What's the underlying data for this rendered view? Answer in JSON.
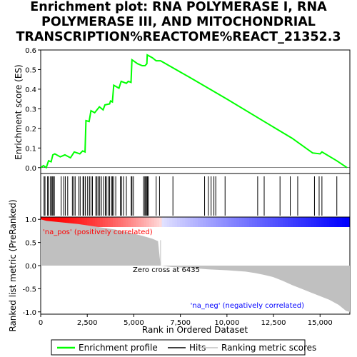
{
  "chart_data": {
    "type": "line",
    "title_lines": [
      "Enrichment plot: RNA POLYMERASE I, RNA",
      "POLYMERASE III, AND MITOCHONDRIAL",
      "TRANSCRIPTION%REACTOME%REACT_21352.3"
    ],
    "top_panel": {
      "ylabel": "Enrichment score (ES)",
      "ylim": [
        -0.03,
        0.6
      ],
      "yticks": [
        "0.0",
        "0.1",
        "0.2",
        "0.3",
        "0.4",
        "0.5",
        "0.6"
      ],
      "grid": false
    },
    "bottom_panel": {
      "ylabel": "Ranked list metric (PreRanked)",
      "ylim": [
        -1.05,
        1.05
      ],
      "yticks": [
        "-1.0",
        "-0.5",
        "0.0",
        "0.5",
        "1.0"
      ],
      "positive_label": "'na_pos' (positively correlated)",
      "negative_label": "'na_neg' (negatively correlated)",
      "zero_cross_label": "Zero cross at 6435",
      "zero_cross": 6435
    },
    "xlabel": "Rank in Ordered Dataset",
    "xlim": [
      0,
      16600
    ],
    "xticks": [
      "0",
      "2,500",
      "5,000",
      "7,500",
      "10,000",
      "12,500",
      "15,000"
    ],
    "colors": {
      "enrichment": "#00ff00",
      "hits": "#000000",
      "metric_fill": "#c0c0c0",
      "bar_pos": "#ff0000",
      "bar_neg": "#0000ff",
      "pos_label": "#ff0000",
      "neg_label": "#0000ff"
    },
    "enrichment_profile": [
      [
        0,
        0.0
      ],
      [
        150,
        0.01
      ],
      [
        300,
        0.0
      ],
      [
        420,
        0.035
      ],
      [
        560,
        0.03
      ],
      [
        650,
        0.065
      ],
      [
        760,
        0.07
      ],
      [
        1050,
        0.055
      ],
      [
        1300,
        0.065
      ],
      [
        1600,
        0.05
      ],
      [
        1800,
        0.08
      ],
      [
        2100,
        0.07
      ],
      [
        2250,
        0.085
      ],
      [
        2380,
        0.08
      ],
      [
        2430,
        0.24
      ],
      [
        2600,
        0.235
      ],
      [
        2700,
        0.29
      ],
      [
        2900,
        0.28
      ],
      [
        3150,
        0.31
      ],
      [
        3350,
        0.295
      ],
      [
        3450,
        0.32
      ],
      [
        3700,
        0.325
      ],
      [
        3750,
        0.34
      ],
      [
        3850,
        0.335
      ],
      [
        3920,
        0.42
      ],
      [
        4200,
        0.405
      ],
      [
        4320,
        0.44
      ],
      [
        4600,
        0.43
      ],
      [
        4700,
        0.44
      ],
      [
        4850,
        0.435
      ],
      [
        4900,
        0.55
      ],
      [
        5200,
        0.53
      ],
      [
        5450,
        0.52
      ],
      [
        5600,
        0.52
      ],
      [
        5700,
        0.53
      ],
      [
        5720,
        0.575
      ],
      [
        6000,
        0.56
      ],
      [
        6200,
        0.545
      ],
      [
        6435,
        0.545
      ],
      [
        8000,
        0.46
      ],
      [
        10000,
        0.35
      ],
      [
        12000,
        0.235
      ],
      [
        13500,
        0.15
      ],
      [
        14600,
        0.075
      ],
      [
        15000,
        0.07
      ],
      [
        15100,
        0.08
      ],
      [
        15900,
        0.035
      ],
      [
        16450,
        0.0
      ]
    ],
    "hits": [
      180,
      230,
      370,
      420,
      530,
      580,
      640,
      700,
      730,
      1100,
      1240,
      1320,
      1450,
      1700,
      1780,
      1850,
      2050,
      2120,
      2270,
      2320,
      2400,
      2520,
      2620,
      2700,
      2780,
      2960,
      3020,
      3090,
      3170,
      3260,
      3380,
      3470,
      3530,
      3620,
      3700,
      3800,
      3850,
      3920,
      4030,
      4280,
      4340,
      4450,
      4600,
      4860,
      4900,
      4980,
      5520,
      5590,
      5640,
      5680,
      5730,
      5780,
      6200,
      6380,
      7100,
      8800,
      9000,
      9150,
      9300,
      9400,
      9900,
      11650,
      12000,
      12850,
      13400,
      13800,
      14700,
      14950,
      15100,
      15900
    ],
    "ranked_metric": [
      [
        0,
        1.0
      ],
      [
        100,
        0.99
      ],
      [
        300,
        0.97
      ],
      [
        1000,
        0.94
      ],
      [
        2000,
        0.9
      ],
      [
        3000,
        0.84
      ],
      [
        4000,
        0.78
      ],
      [
        5000,
        0.69
      ],
      [
        5500,
        0.64
      ],
      [
        6000,
        0.58
      ],
      [
        6300,
        0.53
      ],
      [
        6435,
        0.0
      ],
      [
        7000,
        -0.03
      ],
      [
        8000,
        -0.05
      ],
      [
        9000,
        -0.08
      ],
      [
        10000,
        -0.1
      ],
      [
        11000,
        -0.13
      ],
      [
        11500,
        -0.16
      ],
      [
        12000,
        -0.2
      ],
      [
        12500,
        -0.25
      ],
      [
        13000,
        -0.33
      ],
      [
        13500,
        -0.42
      ],
      [
        14000,
        -0.5
      ],
      [
        14500,
        -0.58
      ],
      [
        15000,
        -0.66
      ],
      [
        15500,
        -0.74
      ],
      [
        16000,
        -0.85
      ],
      [
        16400,
        -0.98
      ],
      [
        16600,
        -1.0
      ]
    ],
    "legend": {
      "placement": "bottom",
      "items": [
        {
          "label": "Enrichment profile",
          "key": "enrichment"
        },
        {
          "label": "Hits",
          "key": "hits"
        },
        {
          "label": "Ranking metric scores",
          "key": "metric"
        }
      ]
    }
  }
}
